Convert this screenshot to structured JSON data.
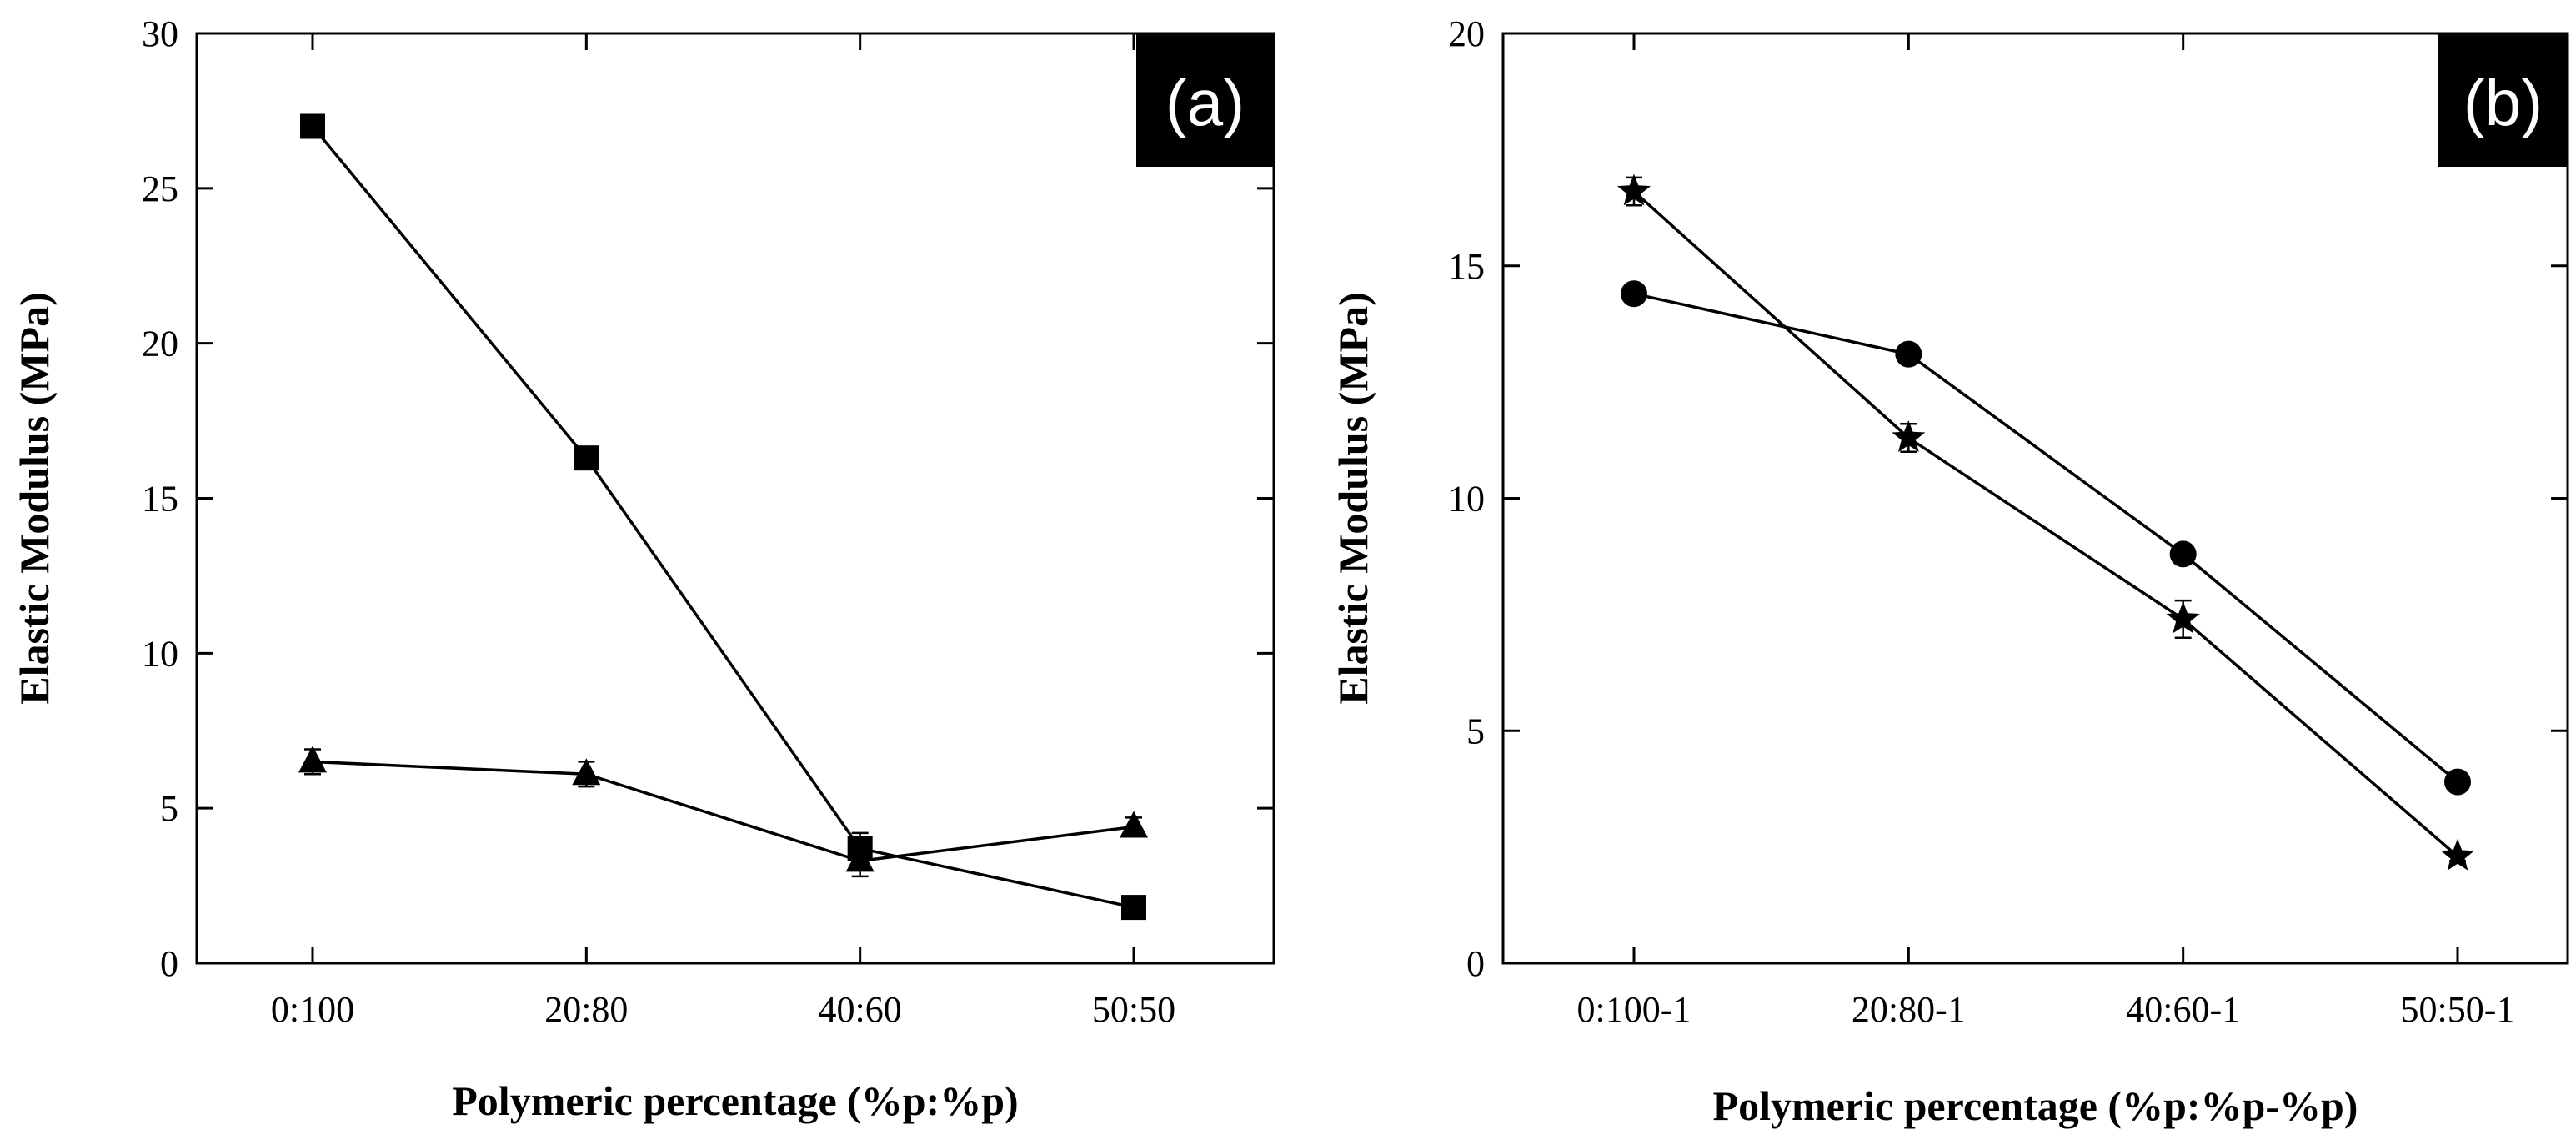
{
  "chart_data": [
    {
      "type": "line",
      "panel_label": "(a)",
      "categories": [
        "0:100",
        "20:80",
        "40:60",
        "50:50"
      ],
      "xlabel": "Polymeric percentage (%p:%p)",
      "ylabel": "Elastic Modulus (MPa)",
      "ylim": [
        0,
        30
      ],
      "yticks": [
        0,
        5,
        10,
        15,
        20,
        25,
        30
      ],
      "series": [
        {
          "name": "square",
          "marker": "square",
          "values": [
            27.0,
            16.3,
            3.7,
            1.8
          ],
          "errors": [
            0.2,
            0.2,
            0.5,
            0.2
          ]
        },
        {
          "name": "triangle",
          "marker": "triangle",
          "values": [
            6.5,
            6.1,
            3.3,
            4.4
          ],
          "errors": [
            0.4,
            0.4,
            0.5,
            0.3
          ]
        }
      ]
    },
    {
      "type": "line",
      "panel_label": "(b)",
      "categories": [
        "0:100-1",
        "20:80-1",
        "40:60-1",
        "50:50-1"
      ],
      "xlabel": "Polymeric percentage (%p:%p-%p)",
      "ylabel": "Elastic Modulus (MPa)",
      "ylim": [
        0,
        20
      ],
      "yticks": [
        0,
        5,
        10,
        15,
        20
      ],
      "series": [
        {
          "name": "circle",
          "marker": "circle",
          "values": [
            14.4,
            13.1,
            8.8,
            3.9
          ],
          "errors": [
            0.1,
            0.1,
            0.1,
            0.1
          ]
        },
        {
          "name": "star",
          "marker": "star",
          "values": [
            16.6,
            11.3,
            7.4,
            2.3
          ],
          "errors": [
            0.3,
            0.3,
            0.4,
            0.1
          ]
        }
      ]
    }
  ]
}
